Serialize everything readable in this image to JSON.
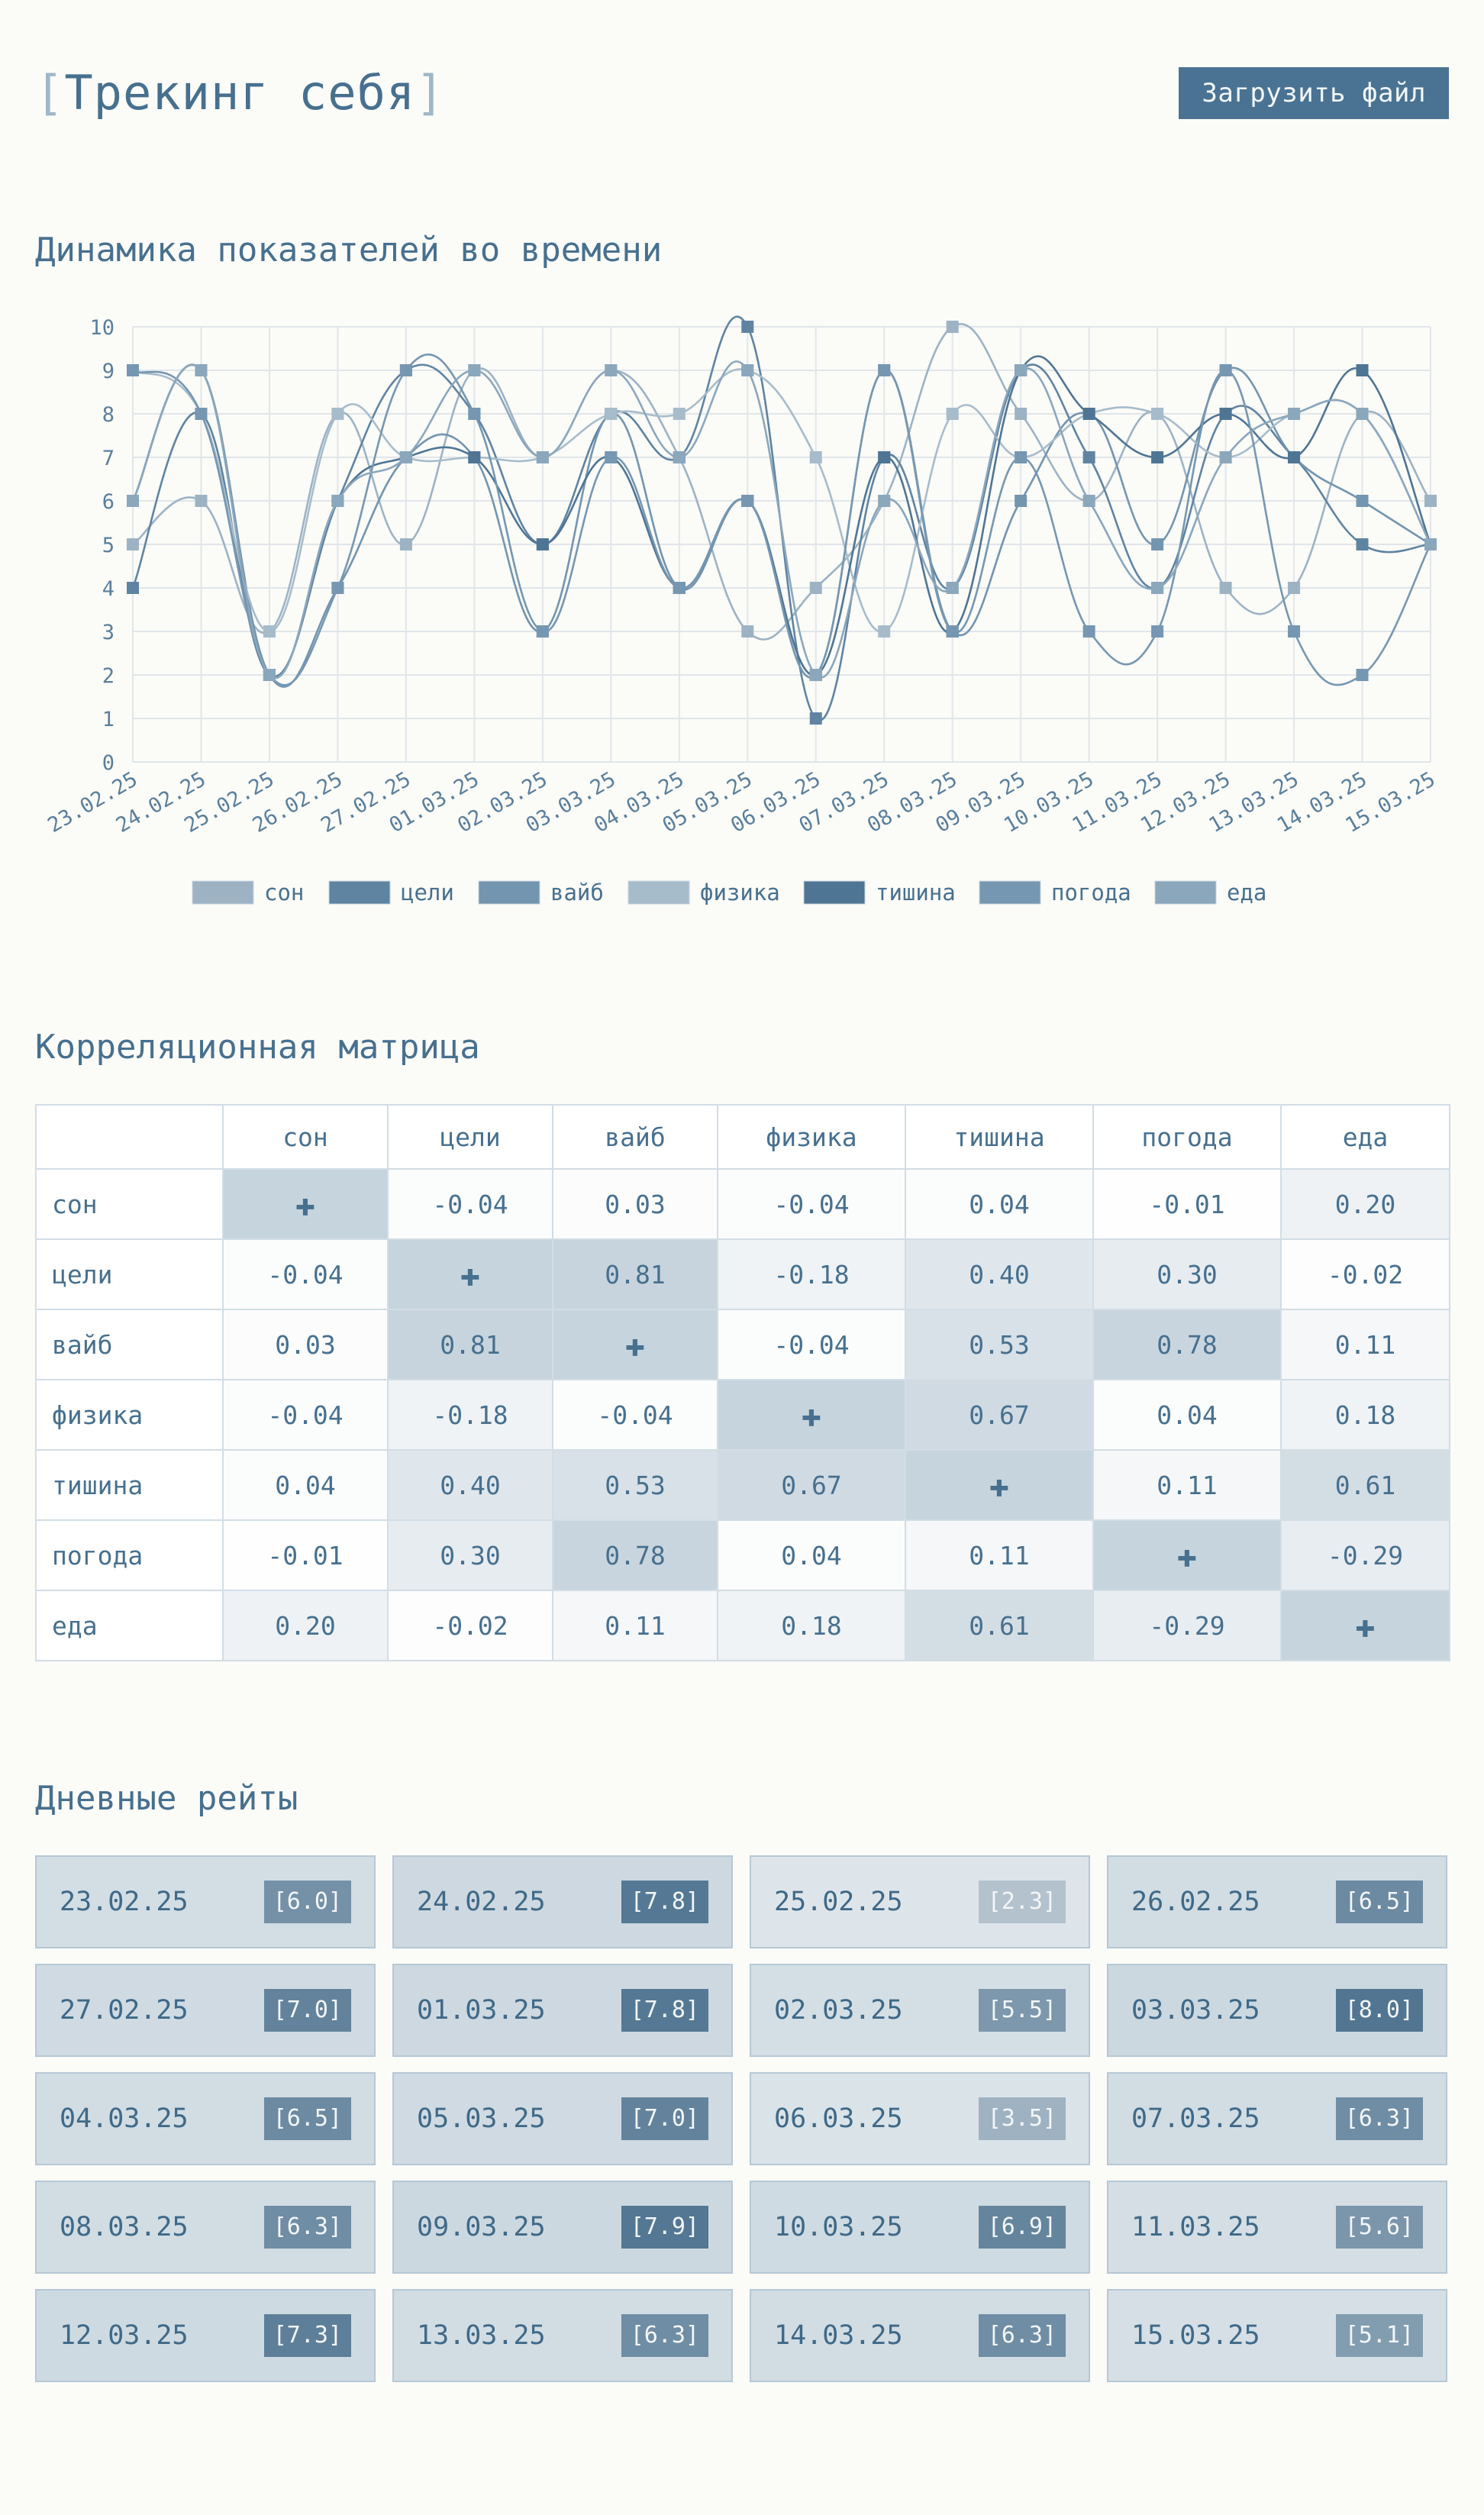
{
  "header": {
    "title_open": "[",
    "title": "Трекинг себя",
    "title_close": "]",
    "upload_label": "Загрузить файл"
  },
  "sections": {
    "chart_title": "Динамика показателей во времени",
    "matrix_title": "Корреляционная матрица",
    "ratings_title": "Дневные рейты"
  },
  "chart_data": {
    "type": "line",
    "categories": [
      "23.02.25",
      "24.02.25",
      "25.02.25",
      "26.02.25",
      "27.02.25",
      "01.03.25",
      "02.03.25",
      "03.03.25",
      "04.03.25",
      "05.03.25",
      "06.03.25",
      "07.03.25",
      "08.03.25",
      "09.03.25",
      "10.03.25",
      "11.03.25",
      "12.03.25",
      "13.03.25",
      "14.03.25",
      "15.03.25"
    ],
    "ylim": [
      0,
      10
    ],
    "yticks": [
      0,
      1,
      2,
      3,
      4,
      5,
      6,
      7,
      8,
      9,
      10
    ],
    "grid": true,
    "legend_position": "bottom",
    "series": [
      {
        "name": "сон",
        "color": "#9db3c4",
        "values": [
          5,
          6,
          3,
          8,
          5,
          9,
          7,
          9,
          7,
          3,
          4,
          6,
          10,
          8,
          6,
          8,
          4,
          4,
          8,
          6
        ]
      },
      {
        "name": "цели",
        "color": "#5f84a2",
        "values": [
          4,
          8,
          2,
          6,
          9,
          8,
          5,
          8,
          7,
          10,
          1,
          7,
          4,
          9,
          7,
          4,
          8,
          7,
          5,
          5
        ]
      },
      {
        "name": "вайб",
        "color": "#7395af",
        "values": [
          6,
          9,
          2,
          4,
          7,
          7,
          3,
          8,
          4,
          6,
          2,
          9,
          3,
          6,
          8,
          5,
          9,
          7,
          6,
          5
        ]
      },
      {
        "name": "физика",
        "color": "#a7bccb",
        "values": [
          9,
          8,
          3,
          8,
          7,
          7,
          7,
          8,
          8,
          9,
          7,
          3,
          8,
          7,
          8,
          8,
          7,
          8,
          8,
          5
        ]
      },
      {
        "name": "тишина",
        "color": "#4f7594",
        "values": [
          6,
          9,
          2,
          6,
          7,
          7,
          5,
          7,
          4,
          6,
          2,
          7,
          3,
          9,
          8,
          7,
          8,
          7,
          9,
          5
        ]
      },
      {
        "name": "погода",
        "color": "#7697b1",
        "values": [
          9,
          8,
          2,
          4,
          9,
          8,
          3,
          7,
          4,
          6,
          2,
          9,
          3,
          7,
          3,
          3,
          9,
          3,
          2,
          5
        ]
      },
      {
        "name": "еда",
        "color": "#8ba7bc",
        "values": [
          6,
          9,
          2,
          6,
          7,
          9,
          7,
          9,
          7,
          9,
          2,
          6,
          4,
          9,
          6,
          4,
          7,
          8,
          8,
          5
        ]
      }
    ]
  },
  "matrix": {
    "headers": [
      "сон",
      "цели",
      "вайб",
      "физика",
      "тишина",
      "погода",
      "еда"
    ],
    "diag_symbol": "✚",
    "rows": [
      {
        "label": "сон",
        "values": [
          "+",
          "-0.04",
          "0.03",
          "-0.04",
          "0.04",
          "-0.01",
          "0.20"
        ]
      },
      {
        "label": "цели",
        "values": [
          "-0.04",
          "+",
          "0.81",
          "-0.18",
          "0.40",
          "0.30",
          "-0.02"
        ]
      },
      {
        "label": "вайб",
        "values": [
          "0.03",
          "0.81",
          "+",
          "-0.04",
          "0.53",
          "0.78",
          "0.11"
        ]
      },
      {
        "label": "физика",
        "values": [
          "-0.04",
          "-0.18",
          "-0.04",
          "+",
          "0.67",
          "0.04",
          "0.18"
        ]
      },
      {
        "label": "тишина",
        "values": [
          "0.04",
          "0.40",
          "0.53",
          "0.67",
          "+",
          "0.11",
          "0.61"
        ]
      },
      {
        "label": "погода",
        "values": [
          "-0.01",
          "0.30",
          "0.78",
          "0.04",
          "0.11",
          "+",
          "-0.29"
        ]
      },
      {
        "label": "еда",
        "values": [
          "0.20",
          "-0.02",
          "0.11",
          "0.18",
          "0.61",
          "-0.29",
          "+"
        ]
      }
    ]
  },
  "ratings": [
    {
      "date": "23.02.25",
      "rating": "[6.0]",
      "value": 6.0
    },
    {
      "date": "24.02.25",
      "rating": "[7.8]",
      "value": 7.8
    },
    {
      "date": "25.02.25",
      "rating": "[2.3]",
      "value": 2.3
    },
    {
      "date": "26.02.25",
      "rating": "[6.5]",
      "value": 6.5
    },
    {
      "date": "27.02.25",
      "rating": "[7.0]",
      "value": 7.0
    },
    {
      "date": "01.03.25",
      "rating": "[7.8]",
      "value": 7.8
    },
    {
      "date": "02.03.25",
      "rating": "[5.5]",
      "value": 5.5
    },
    {
      "date": "03.03.25",
      "rating": "[8.0]",
      "value": 8.0
    },
    {
      "date": "04.03.25",
      "rating": "[6.5]",
      "value": 6.5
    },
    {
      "date": "05.03.25",
      "rating": "[7.0]",
      "value": 7.0
    },
    {
      "date": "06.03.25",
      "rating": "[3.5]",
      "value": 3.5
    },
    {
      "date": "07.03.25",
      "rating": "[6.3]",
      "value": 6.3
    },
    {
      "date": "08.03.25",
      "rating": "[6.3]",
      "value": 6.3
    },
    {
      "date": "09.03.25",
      "rating": "[7.9]",
      "value": 7.9
    },
    {
      "date": "10.03.25",
      "rating": "[6.9]",
      "value": 6.9
    },
    {
      "date": "11.03.25",
      "rating": "[5.6]",
      "value": 5.6
    },
    {
      "date": "12.03.25",
      "rating": "[7.3]",
      "value": 7.3
    },
    {
      "date": "13.03.25",
      "rating": "[6.3]",
      "value": 6.3
    },
    {
      "date": "14.03.25",
      "rating": "[6.3]",
      "value": 6.3
    },
    {
      "date": "15.03.25",
      "rating": "[5.1]",
      "value": 5.1
    }
  ]
}
